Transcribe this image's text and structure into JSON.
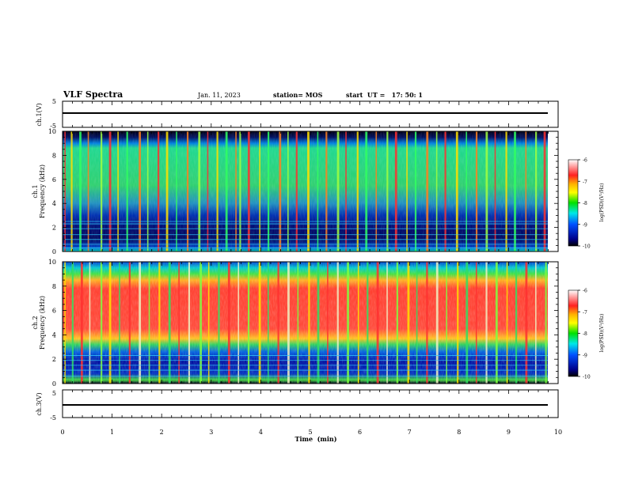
{
  "header": {
    "title": "VLF Spectra",
    "date": "Jan. 11, 2023",
    "station": "station= MOS",
    "start_ut": "start  UT =   17: 50: 1"
  },
  "panels": {
    "ch1_wave": {
      "ylabel": "ch.1(V)",
      "ticks": [
        "5",
        "-5"
      ]
    },
    "ch1_spec": {
      "ylabel_top": "ch.1",
      "ylabel": "Frequency (kHz)",
      "ticks": [
        "0",
        "2",
        "4",
        "6",
        "8",
        "10"
      ]
    },
    "ch2_spec": {
      "ylabel_top": "ch.2",
      "ylabel": "Frequency (kHz)",
      "ticks": [
        "0",
        "2",
        "4",
        "6",
        "8",
        "10"
      ]
    },
    "ch3_wave": {
      "ylabel": "ch.3(V)",
      "ticks": [
        "5",
        "-5"
      ]
    }
  },
  "colorbar": {
    "label": "log(PSD)(V²/Hz)",
    "ticks": [
      "-6",
      "-7",
      "-8",
      "-9",
      "-10"
    ],
    "stops": [
      "#ffffff",
      "#ff2020",
      "#ffb000",
      "#ffff00",
      "#00e000",
      "#00e8e8",
      "#0050ff",
      "#00008a",
      "#000000"
    ]
  },
  "xaxis": {
    "label": "Time  (min)",
    "ticks": [
      "0",
      "1",
      "2",
      "3",
      "4",
      "5",
      "6",
      "7",
      "8",
      "9",
      "10"
    ]
  },
  "chart_data": [
    {
      "type": "line",
      "name": "ch.1 waveform",
      "ylabel": "ch.1(V)",
      "xlim": [
        0,
        10
      ],
      "ylim": [
        -5,
        5
      ],
      "x": [
        0,
        9.83
      ],
      "y": [
        0,
        0
      ]
    },
    {
      "type": "heatmap",
      "name": "ch.1 spectrogram",
      "xlabel": "Time (min)",
      "ylabel": "Frequency (kHz)",
      "xlim": [
        0,
        10
      ],
      "ylim": [
        0,
        10
      ],
      "colorbar_range": [
        -10,
        -6
      ],
      "description_bands": [
        {
          "freq_khz": [
            0.3,
            2.8
          ],
          "level": "low"
        },
        {
          "freq_khz": [
            3,
            9
          ],
          "level": "mid"
        },
        {
          "freq_khz": [
            9,
            10
          ],
          "level": "lowest"
        }
      ],
      "narrowband_lines_khz": [
        0.3,
        0.6,
        1.0,
        1.4,
        1.9,
        2.3,
        2.5
      ],
      "sferic_times_min": [
        0.05,
        0.18,
        0.35,
        0.52,
        0.78,
        0.95,
        1.12,
        1.3,
        1.55,
        1.72,
        1.93,
        2.1,
        2.3,
        2.52,
        2.75,
        2.93,
        3.12,
        3.3,
        3.5,
        3.58,
        3.75,
        3.98,
        4.15,
        4.38,
        4.55,
        4.72,
        4.95,
        5.15,
        5.32,
        5.55,
        5.72,
        5.95,
        6.12,
        6.33,
        6.55,
        6.72,
        6.95,
        7.12,
        7.35,
        7.55,
        7.72,
        7.95,
        8.15,
        8.35,
        8.55,
        8.73,
        8.95,
        9.12,
        9.35,
        9.55,
        9.72
      ]
    },
    {
      "type": "heatmap",
      "name": "ch.2 spectrogram",
      "xlabel": "Time (min)",
      "ylabel": "Frequency (kHz)",
      "xlim": [
        0,
        10
      ],
      "ylim": [
        0,
        10
      ],
      "colorbar_range": [
        -10,
        -6
      ],
      "description_bands": [
        {
          "freq_khz": [
            0.3,
            2.8
          ],
          "level": "low"
        },
        {
          "freq_khz": [
            3.5,
            8.2
          ],
          "level": "high"
        },
        {
          "freq_khz": [
            8.2,
            10
          ],
          "level": "mid"
        }
      ],
      "narrowband_lines_khz": [
        0.6,
        1.1,
        1.5,
        1.9,
        2.3
      ],
      "sferic_times_min": [
        0.05,
        0.2,
        0.38,
        0.55,
        0.78,
        0.95,
        1.15,
        1.35,
        1.55,
        1.75,
        1.95,
        2.15,
        2.35,
        2.55,
        2.78,
        2.95,
        3.15,
        3.35,
        3.55,
        3.75,
        3.97,
        4.15,
        4.35,
        4.55,
        4.75,
        4.97,
        5.15,
        5.35,
        5.55,
        5.75,
        5.97,
        6.15,
        6.35,
        6.55,
        6.75,
        6.97,
        7.15,
        7.35,
        7.55,
        7.75,
        7.97,
        8.15,
        8.35,
        8.55,
        8.75,
        8.97,
        9.15,
        9.35,
        9.55,
        9.75
      ]
    },
    {
      "type": "line",
      "name": "ch.3 waveform",
      "ylabel": "ch.3(V)",
      "xlim": [
        0,
        10
      ],
      "ylim": [
        -5,
        5
      ],
      "x": [
        0,
        9.83
      ],
      "y": [
        0,
        0
      ]
    }
  ]
}
